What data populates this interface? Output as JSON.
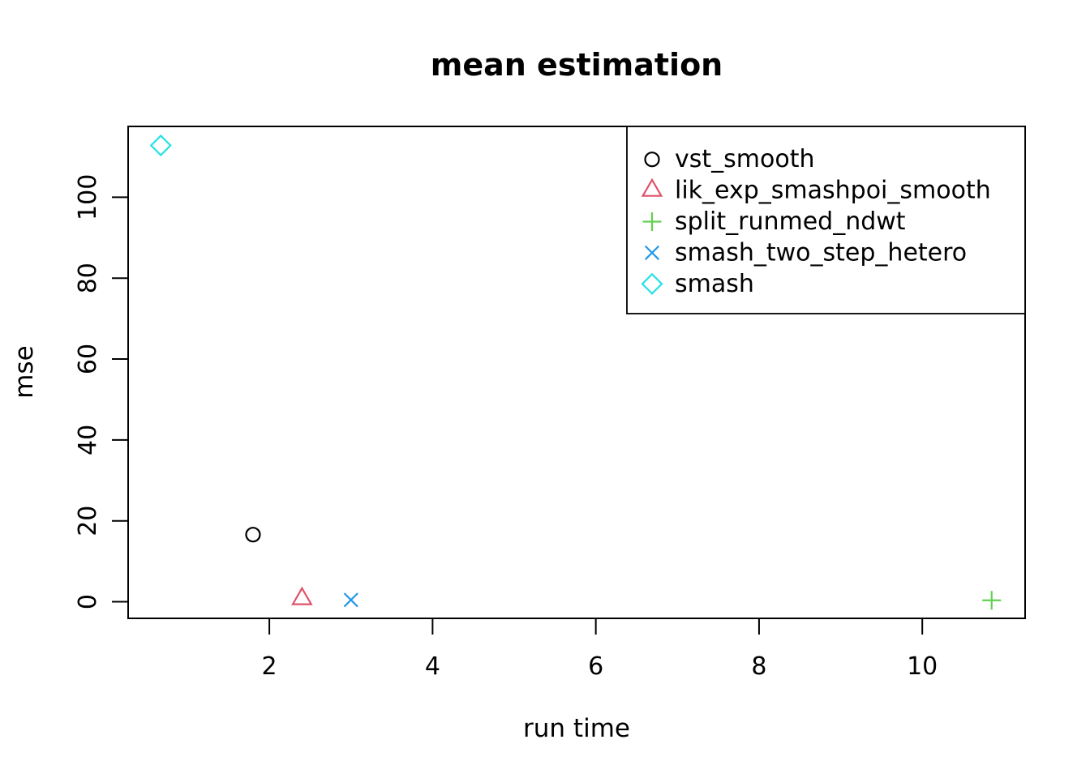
{
  "chart_data": {
    "type": "scatter",
    "title": "mean estimation",
    "xlabel": "run time",
    "ylabel": "mse",
    "xlim": [
      0.27,
      11.26
    ],
    "ylim": [
      -4.1,
      117.5
    ],
    "xticks": [
      2,
      4,
      6,
      8,
      10
    ],
    "yticks": [
      0,
      20,
      40,
      60,
      80,
      100
    ],
    "grid": false,
    "legend_position": "topright",
    "series": [
      {
        "name": "vst_smooth",
        "marker": "circle",
        "color": "#000000",
        "points": [
          {
            "x": 1.8,
            "y": 16.6
          }
        ]
      },
      {
        "name": "lik_exp_smashpoi_smooth",
        "marker": "triangle",
        "color": "#DF536B",
        "points": [
          {
            "x": 2.4,
            "y": 0.7
          }
        ]
      },
      {
        "name": "split_runmed_ndwt",
        "marker": "plus",
        "color": "#61D04F",
        "points": [
          {
            "x": 10.85,
            "y": 0.35
          }
        ]
      },
      {
        "name": "smash_two_step_hetero",
        "marker": "x",
        "color": "#2297E6",
        "points": [
          {
            "x": 3.0,
            "y": 0.45
          }
        ]
      },
      {
        "name": "smash",
        "marker": "diamond",
        "color": "#28E2E5",
        "points": [
          {
            "x": 0.67,
            "y": 112.8
          }
        ]
      }
    ]
  }
}
